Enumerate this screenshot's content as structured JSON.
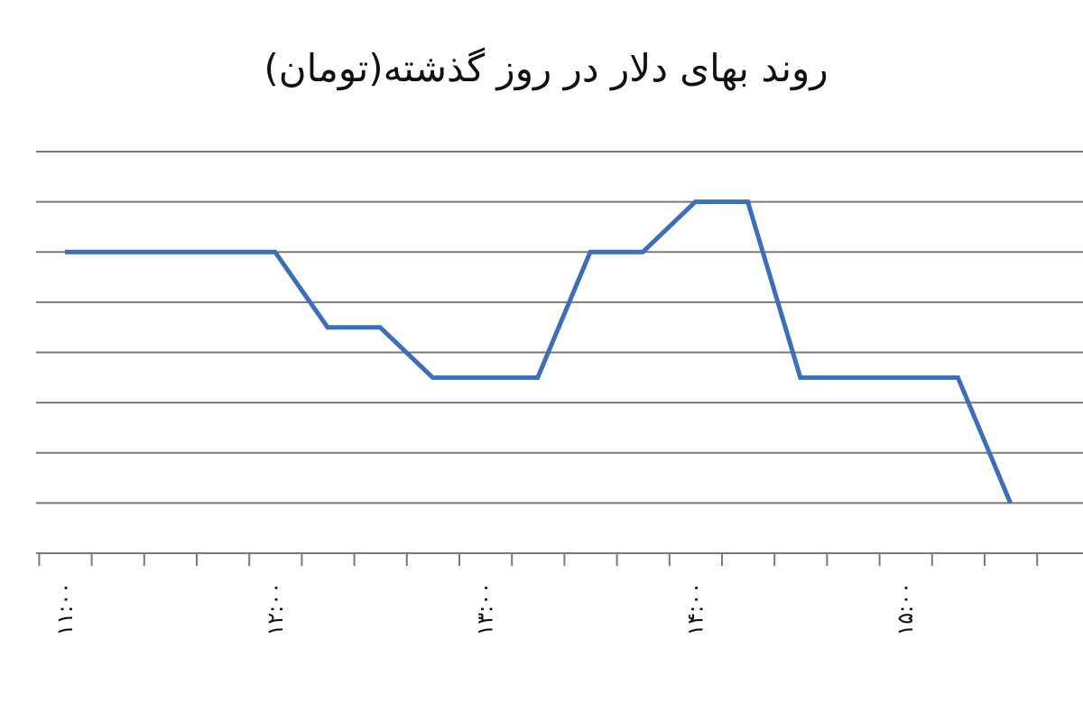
{
  "chart_data": {
    "type": "line",
    "title": "روند بهای دلار در روز گذشته(تومان)",
    "xlabel": "",
    "ylabel": "",
    "x": [
      "۱۱:۰۰",
      "۱۱:۱۵",
      "۱۱:۳۰",
      "۱۱:۴۵",
      "۱۲:۰۰",
      "۱۲:۱۵",
      "۱۲:۳۰",
      "۱۲:۴۵",
      "۱۳:۰۰",
      "۱۳:۱۵",
      "۱۳:۳۰",
      "۱۳:۴۵",
      "۱۴:۰۰",
      "۱۴:۱۵",
      "۱۴:۳۰",
      "۱۴:۴۵",
      "۱۵:۰۰",
      "۱۵:۱۵",
      "۱۵:۳۰"
    ],
    "x_tick_labels": [
      "۱۱:۰۰",
      "۱۲:۰۰",
      "۱۳:۰۰",
      "۱۴:۰۰",
      "۱۵:۰۰"
    ],
    "series": [
      {
        "values": [
          5,
          5,
          5,
          5,
          5,
          3.5,
          3.5,
          2.5,
          2.5,
          2.5,
          5,
          5,
          6,
          6,
          2.5,
          2.5,
          2.5,
          2.5,
          0
        ]
      }
    ],
    "ylim": [
      -1,
      7
    ],
    "grid": true,
    "line_color": "#3d6fb8"
  }
}
